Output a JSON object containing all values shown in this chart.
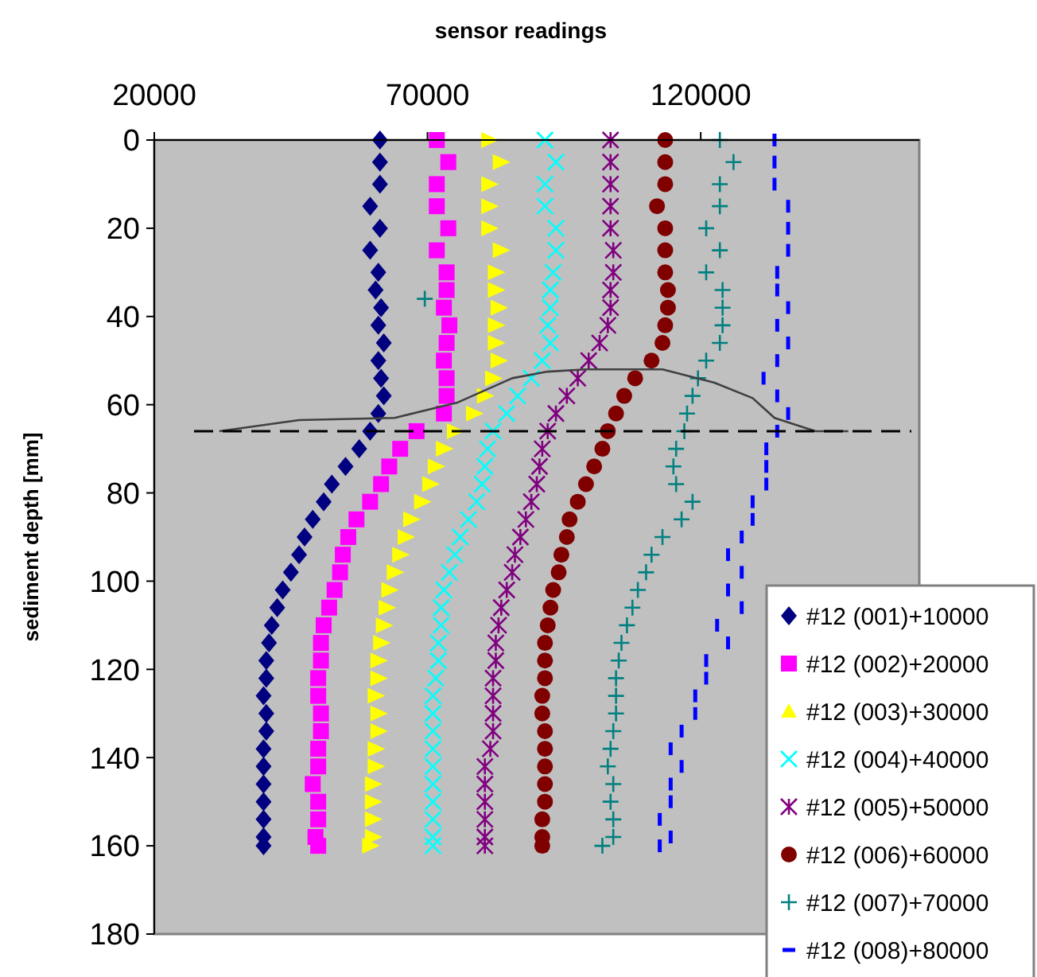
{
  "chart_data": {
    "type": "scatter",
    "xlabel": "sensor readings",
    "ylabel": "sediment depth [mm]",
    "xlim": [
      20000,
      160000
    ],
    "xticks": [
      20000,
      70000,
      120000
    ],
    "ylim": [
      180,
      0
    ],
    "yticks": [
      0,
      20,
      40,
      60,
      80,
      100,
      120,
      140,
      160,
      180
    ],
    "grid": false,
    "legend": "bottom right",
    "ref_lines": [
      {
        "axis": "y",
        "value": 66,
        "color": "#000000",
        "line_style": "dashed"
      }
    ],
    "series": [
      {
        "name": "#12 (001)+10000",
        "color": "#000080",
        "marker": "diamond",
        "x": [
          61300,
          61300,
          61300,
          59500,
          61300,
          59500,
          61000,
          60500,
          61500,
          61000,
          62000,
          61000,
          61500,
          62000,
          61000,
          59500,
          57500,
          55000,
          52500,
          51000,
          49000,
          47500,
          46500,
          45000,
          43500,
          42500,
          41500,
          41000,
          40500,
          40500,
          40000,
          40500,
          40500,
          40000,
          40000,
          40000,
          40000,
          40000,
          40000,
          40000
        ],
        "values": [
          0,
          5,
          10,
          15,
          20,
          25,
          30,
          34,
          38,
          42,
          46,
          50,
          54,
          58,
          62,
          66,
          70,
          74,
          78,
          82,
          86,
          90,
          94,
          98,
          102,
          106,
          110,
          114,
          118,
          122,
          126,
          130,
          134,
          138,
          142,
          146,
          150,
          154,
          158,
          160
        ]
      },
      {
        "name": "#12 (002)+20000",
        "color": "#ff00ff",
        "marker": "square",
        "x": [
          71700,
          73800,
          71700,
          71700,
          73800,
          71700,
          73500,
          73500,
          73000,
          74000,
          73500,
          73000,
          73500,
          73500,
          73000,
          68000,
          65000,
          63000,
          61500,
          59500,
          57000,
          55500,
          54500,
          54000,
          53000,
          52000,
          51000,
          50500,
          50500,
          50000,
          50000,
          50500,
          50500,
          50000,
          50000,
          49000,
          50000,
          50000,
          49500,
          50000
        ],
        "values": [
          0,
          5,
          10,
          15,
          20,
          25,
          30,
          34,
          38,
          42,
          46,
          50,
          54,
          58,
          62,
          66,
          70,
          74,
          78,
          82,
          86,
          90,
          94,
          98,
          102,
          106,
          110,
          114,
          118,
          122,
          126,
          130,
          134,
          138,
          142,
          146,
          150,
          154,
          158,
          160
        ]
      },
      {
        "name": "#12 (003)+30000",
        "color": "#ffff00",
        "marker": "triangle",
        "x": [
          81300,
          83400,
          81300,
          81300,
          81300,
          83400,
          82500,
          82500,
          83000,
          82500,
          82500,
          83000,
          82000,
          80500,
          78500,
          75000,
          73000,
          71500,
          70500,
          69000,
          67000,
          66000,
          65000,
          64000,
          63000,
          62500,
          62000,
          61500,
          61000,
          61000,
          60500,
          61000,
          61000,
          60500,
          60500,
          60000,
          60000,
          60000,
          60000,
          59500
        ],
        "values": [
          0,
          5,
          10,
          15,
          20,
          25,
          30,
          34,
          38,
          42,
          46,
          50,
          54,
          58,
          62,
          66,
          70,
          74,
          78,
          82,
          86,
          90,
          94,
          98,
          102,
          106,
          110,
          114,
          118,
          122,
          126,
          130,
          134,
          138,
          142,
          146,
          150,
          154,
          158,
          160
        ]
      },
      {
        "name": "#12 (004)+40000",
        "color": "#00ffff",
        "marker": "x",
        "x": [
          91500,
          93500,
          91500,
          91500,
          93500,
          93500,
          93000,
          92500,
          92500,
          92000,
          92500,
          91000,
          89000,
          86500,
          84500,
          82000,
          81000,
          80500,
          80000,
          79000,
          77500,
          76000,
          75000,
          74000,
          73000,
          72500,
          72500,
          72000,
          72000,
          71500,
          71000,
          71000,
          71000,
          71000,
          71000,
          71000,
          71000,
          71000,
          71000,
          71000
        ],
        "values": [
          0,
          5,
          10,
          15,
          20,
          25,
          30,
          34,
          38,
          42,
          46,
          50,
          54,
          58,
          62,
          66,
          70,
          74,
          78,
          82,
          86,
          90,
          94,
          98,
          102,
          106,
          110,
          114,
          118,
          122,
          126,
          130,
          134,
          138,
          142,
          146,
          150,
          154,
          158,
          160
        ]
      },
      {
        "name": "#12 (005)+50000",
        "color": "#800080",
        "marker": "cross",
        "x": [
          103500,
          103500,
          103500,
          103500,
          103500,
          104000,
          104000,
          103500,
          103500,
          103000,
          101500,
          99500,
          97500,
          95500,
          93500,
          92000,
          91000,
          90500,
          90000,
          89000,
          88000,
          87000,
          86000,
          85500,
          84500,
          83500,
          83000,
          82500,
          82500,
          82000,
          82000,
          82000,
          82000,
          81500,
          80500,
          80500,
          80500,
          80500,
          80500,
          80500
        ],
        "values": [
          0,
          5,
          10,
          15,
          20,
          25,
          30,
          34,
          38,
          42,
          46,
          50,
          54,
          58,
          62,
          66,
          70,
          74,
          78,
          82,
          86,
          90,
          94,
          98,
          102,
          106,
          110,
          114,
          118,
          122,
          126,
          130,
          134,
          138,
          142,
          146,
          150,
          154,
          158,
          160
        ]
      },
      {
        "name": "#12 (006)+60000",
        "color": "#800000",
        "marker": "circle",
        "x": [
          113500,
          113500,
          113500,
          112000,
          113500,
          113500,
          113500,
          114000,
          114000,
          113500,
          113000,
          111000,
          108000,
          106000,
          104500,
          103000,
          102000,
          100500,
          99000,
          97500,
          96000,
          95500,
          94500,
          94000,
          93000,
          92500,
          92000,
          91500,
          91500,
          91500,
          91000,
          91000,
          91500,
          91500,
          91500,
          91500,
          91500,
          91000,
          91000,
          91000
        ],
        "values": [
          0,
          5,
          10,
          15,
          20,
          25,
          30,
          34,
          38,
          42,
          46,
          50,
          54,
          58,
          62,
          66,
          70,
          74,
          78,
          82,
          86,
          90,
          94,
          98,
          102,
          106,
          110,
          114,
          118,
          122,
          126,
          130,
          134,
          138,
          142,
          146,
          150,
          154,
          158,
          160
        ]
      },
      {
        "name": "#12 (007)+70000",
        "color": "#008080",
        "marker": "plus",
        "x": [
          123500,
          126000,
          123500,
          123500,
          121000,
          123500,
          121000,
          124000,
          124000,
          124000,
          123500,
          121000,
          119500,
          118500,
          117500,
          117000,
          115500,
          115000,
          115500,
          118500,
          116500,
          113000,
          111000,
          110000,
          108500,
          107500,
          106500,
          105500,
          105000,
          104500,
          104500,
          104500,
          104000,
          103500,
          103000,
          104000,
          103500,
          104000,
          104000,
          102000,
          69500
        ],
        "values": [
          0,
          5,
          10,
          15,
          20,
          25,
          30,
          34,
          38,
          42,
          46,
          50,
          54,
          58,
          62,
          66,
          70,
          74,
          78,
          82,
          86,
          90,
          94,
          98,
          102,
          106,
          110,
          114,
          118,
          122,
          126,
          130,
          134,
          138,
          142,
          146,
          150,
          154,
          158,
          160,
          36
        ]
      },
      {
        "name": "#12 (008)+80000",
        "color": "#0000ff",
        "x": [
          133500,
          133500,
          133500,
          136000,
          136000,
          136000,
          134000,
          134000,
          136000,
          134000,
          136000,
          134000,
          131500,
          134000,
          136000,
          134000,
          132000,
          132000,
          132000,
          129500,
          129500,
          127500,
          125000,
          127500,
          125000,
          127500,
          123000,
          125000,
          121000,
          121000,
          119000,
          119000,
          116500,
          114500,
          116500,
          114500,
          114500,
          112500,
          114500,
          112500
        ],
        "values": [
          0,
          5,
          10,
          15,
          20,
          25,
          30,
          34,
          38,
          42,
          46,
          50,
          54,
          58,
          62,
          66,
          70,
          74,
          78,
          82,
          86,
          90,
          94,
          98,
          102,
          106,
          110,
          114,
          118,
          122,
          126,
          130,
          134,
          138,
          142,
          146,
          150,
          154,
          158,
          160
        ]
      },
      {
        "type": "line",
        "color": "#404040",
        "x": [
          31900,
          46500,
          64000,
          75500,
          85500,
          92000,
          99000,
          113000,
          122500,
          129500,
          133500,
          141000,
          147000
        ],
        "values": [
          66,
          63.5,
          63,
          59.5,
          54,
          52.5,
          52,
          52,
          55,
          58.5,
          63,
          66,
          66
        ]
      }
    ]
  }
}
